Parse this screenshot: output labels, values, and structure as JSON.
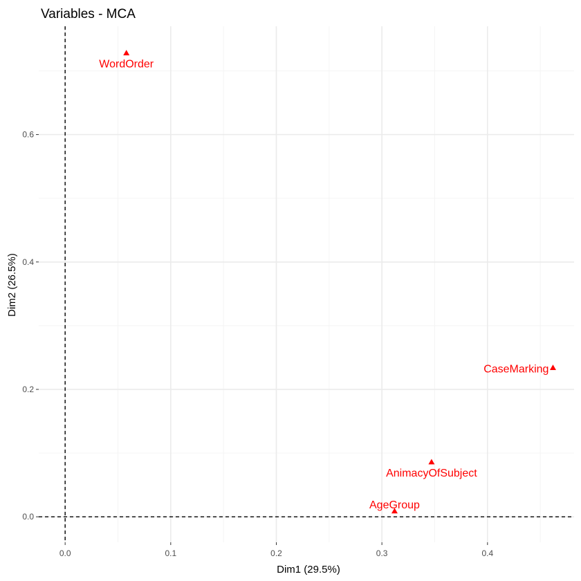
{
  "chart_data": {
    "type": "scatter",
    "title": "Variables - MCA",
    "xlabel": "Dim1 (29.5%)",
    "ylabel": "Dim2 (26.5%)",
    "xlim": [
      -0.025,
      0.482
    ],
    "ylim": [
      -0.04,
      0.77
    ],
    "x_ticks": [
      0.0,
      0.1,
      0.2,
      0.3,
      0.4
    ],
    "x_tick_labels": [
      "0.0",
      "0.1",
      "0.2",
      "0.3",
      "0.4"
    ],
    "x_minor_ticks": [
      0.05,
      0.15,
      0.25,
      0.35,
      0.45
    ],
    "y_ticks": [
      0.0,
      0.2,
      0.4,
      0.6
    ],
    "y_tick_labels": [
      "0.0",
      "0.2",
      "0.4",
      "0.6"
    ],
    "y_minor_ticks": [
      0.1,
      0.3,
      0.5,
      0.7
    ],
    "grid": true,
    "reference_lines": {
      "x": 0,
      "y": 0,
      "style": "dashed"
    },
    "marker": "triangle",
    "point_color": "#ff0000",
    "points": [
      {
        "label": "WordOrder",
        "x": 0.058,
        "y": 0.728,
        "label_pos": "below"
      },
      {
        "label": "CaseMarking",
        "x": 0.462,
        "y": 0.234,
        "label_pos": "left"
      },
      {
        "label": "AnimacyOfSubject",
        "x": 0.347,
        "y": 0.086,
        "label_pos": "below"
      },
      {
        "label": "AgeGroup",
        "x": 0.312,
        "y": 0.009,
        "label_pos": "above"
      }
    ]
  },
  "colors": {
    "grid_major": "#ebebeb",
    "grid_minor": "#f4f4f4",
    "ref_line": "#000000",
    "tick": "#333333"
  }
}
